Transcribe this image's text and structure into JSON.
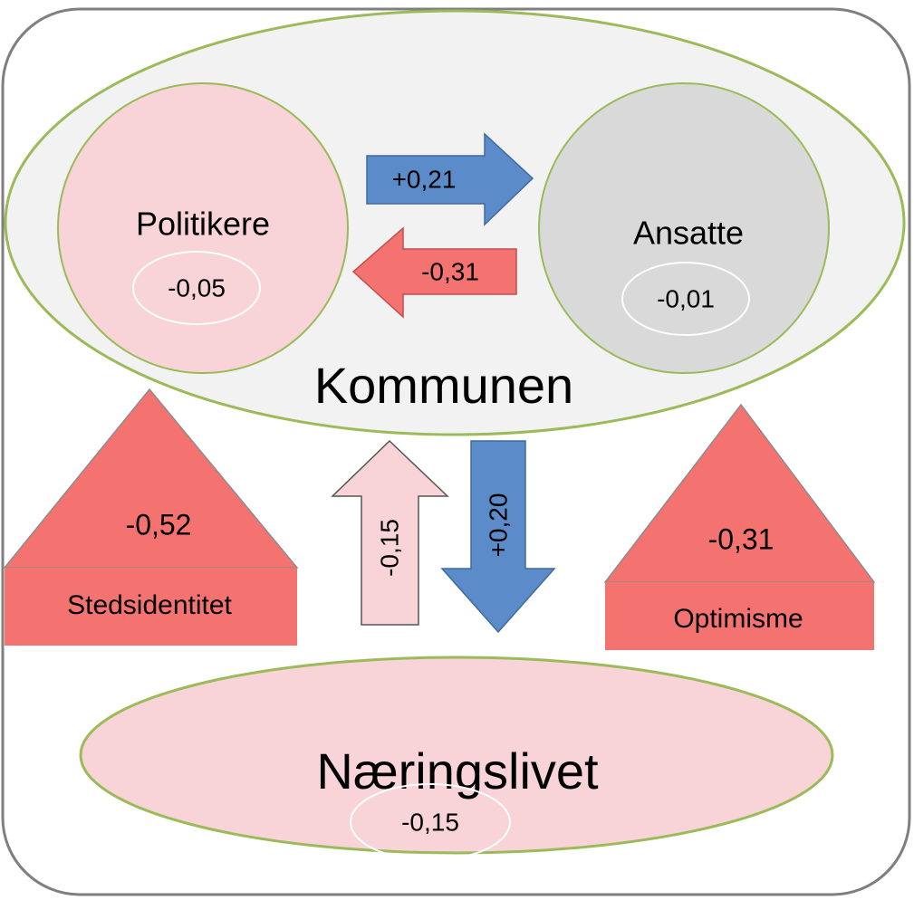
{
  "kommunen": {
    "label": "Kommunen",
    "politikere": {
      "label": "Politikere",
      "value": "-0,05"
    },
    "ansatte": {
      "label": "Ansatte",
      "value": "-0,01"
    },
    "arrow_to_ansatte": {
      "label": "+0,21"
    },
    "arrow_to_politikere": {
      "label": "-0,31"
    }
  },
  "stedsidentitet": {
    "value": "-0,52",
    "label": "Stedsidentitet"
  },
  "optimisme": {
    "value": "-0,31",
    "label": "Optimisme"
  },
  "arrow_up": {
    "label": "-0,15"
  },
  "arrow_down": {
    "label": "+0,20"
  },
  "naeringslivet": {
    "label": "Næringslivet",
    "value": "-0,15"
  }
}
